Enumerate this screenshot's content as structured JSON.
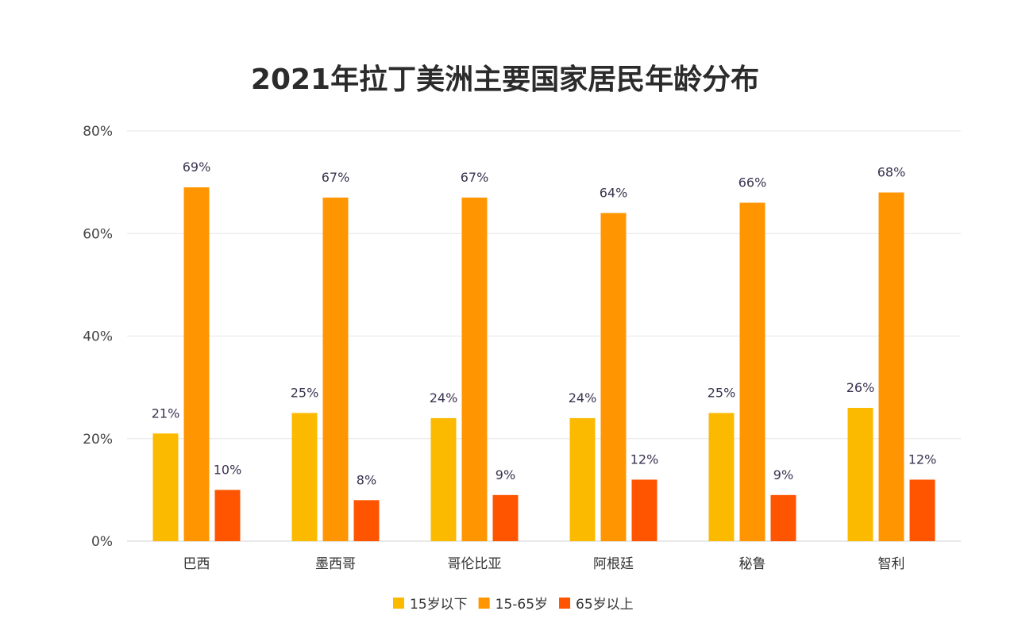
{
  "chart_data": {
    "type": "bar",
    "title": "2021年拉丁美洲主要国家居民年龄分布",
    "categories": [
      "巴西",
      "墨西哥",
      "哥伦比亚",
      "阿根廷",
      "秘鲁",
      "智利"
    ],
    "series": [
      {
        "name": "15岁以下",
        "color": "#FBBA00",
        "values": [
          21,
          25,
          24,
          24,
          25,
          26
        ]
      },
      {
        "name": "15-65岁",
        "color": "#FF9500",
        "values": [
          69,
          67,
          67,
          64,
          66,
          68
        ]
      },
      {
        "name": "65岁以上",
        "color": "#FF5500",
        "values": [
          10,
          8,
          9,
          12,
          9,
          12
        ]
      }
    ],
    "ylim": [
      0,
      80
    ],
    "yticks": [
      0,
      20,
      40,
      60,
      80
    ],
    "ytick_format": "%",
    "grid": true,
    "legend": "bottom",
    "data_labels": true
  }
}
